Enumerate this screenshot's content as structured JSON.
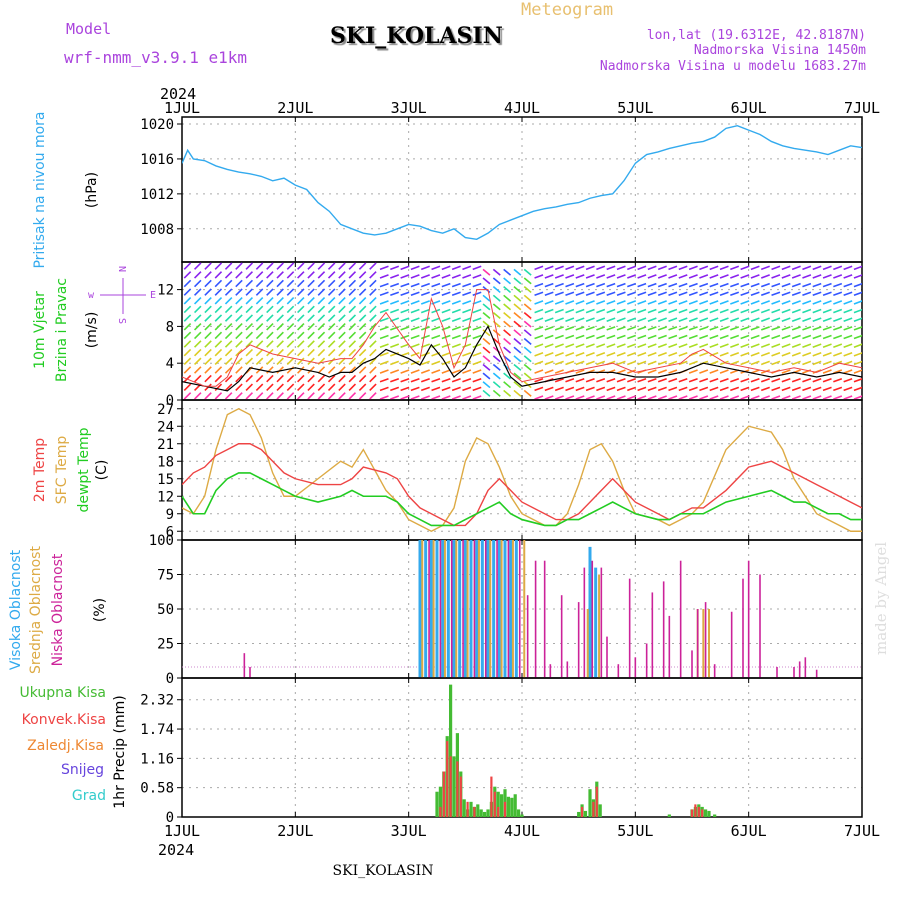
{
  "header": {
    "model_label": "Model",
    "model_name": "wrf-nmm_v3.9.1 e1km",
    "title": "SKI_KOLASIN",
    "subtitle": "Meteogram",
    "location": "lon,lat (19.6312E, 42.8187N)",
    "elevation": "Nadmorska Visina 1450m",
    "model_elevation": "Nadmorska Visina u modelu 1683.27m",
    "year_top": "2024",
    "year_bottom": "2024",
    "footer": "SKI_KOLASIN",
    "watermark": "made by Angel"
  },
  "colors": {
    "pressure": "#33aaee",
    "temp2m": "#ee4444",
    "sfc": "#ddaa44",
    "dewpt": "#22cc22",
    "wind_speed": "#000000",
    "gust": "#ee4444",
    "cloud_high": "#33aaee",
    "cloud_mid": "#ddaa44",
    "cloud_low": "#cc2299",
    "total": "#44bb33",
    "convective": "#ee4444",
    "frozen": "#ee8833",
    "snow": "#6644dd",
    "hail": "#33cccc",
    "grid": "#aaaaaa"
  },
  "chart_data": [
    {
      "type": "line",
      "panel": "pressure",
      "labels": [
        "Pritisak na nivou mora",
        "(hPa)"
      ],
      "x_ticks": [
        "1JUL",
        "2JUL",
        "3JUL",
        "4JUL",
        "5JUL",
        "6JUL",
        "7JUL"
      ],
      "y_ticks": [
        1008,
        1012,
        1016,
        1020
      ],
      "ylim": [
        1004.2,
        1020.8
      ],
      "xlim": [
        0,
        6
      ],
      "series": [
        {
          "x": [
            0,
            0.05,
            0.1,
            0.2,
            0.3,
            0.4,
            0.5,
            0.6,
            0.7,
            0.8,
            0.9,
            1.0,
            1.1,
            1.2,
            1.3,
            1.4,
            1.5,
            1.6,
            1.7,
            1.8,
            1.9,
            2.0,
            2.1,
            2.2,
            2.3,
            2.4,
            2.5,
            2.6,
            2.7,
            2.8,
            2.9,
            3.0,
            3.1,
            3.2,
            3.3,
            3.4,
            3.5,
            3.6,
            3.7,
            3.8,
            3.9,
            4.0,
            4.1,
            4.2,
            4.3,
            4.4,
            4.5,
            4.6,
            4.7,
            4.8,
            4.9,
            5.0,
            5.1,
            5.2,
            5.3,
            5.4,
            5.5,
            5.6,
            5.7,
            5.8,
            5.9,
            6.0
          ],
          "values": [
            1015.5,
            1017.0,
            1016.0,
            1015.8,
            1015.2,
            1014.8,
            1014.5,
            1014.3,
            1014.0,
            1013.5,
            1013.8,
            1013.0,
            1012.5,
            1011.0,
            1010.0,
            1008.5,
            1008.0,
            1007.5,
            1007.3,
            1007.5,
            1008.0,
            1008.5,
            1008.3,
            1007.8,
            1007.5,
            1008.0,
            1007.0,
            1006.8,
            1007.5,
            1008.5,
            1009.0,
            1009.5,
            1010.0,
            1010.3,
            1010.5,
            1010.8,
            1011.0,
            1011.5,
            1011.8,
            1012.0,
            1013.5,
            1015.5,
            1016.5,
            1016.8,
            1017.2,
            1017.5,
            1017.8,
            1018.0,
            1018.5,
            1019.5,
            1019.8,
            1019.3,
            1018.8,
            1018.0,
            1017.5,
            1017.2,
            1017.0,
            1016.8,
            1016.5,
            1017.0,
            1017.5,
            1017.3
          ]
        }
      ]
    },
    {
      "type": "line",
      "panel": "wind",
      "labels": [
        "10m Vjetar",
        "Brzina i Pravac",
        "(m/s)"
      ],
      "legend_glyph": [
        "N",
        "w",
        "E",
        "S"
      ],
      "y_ticks": [
        0,
        4,
        8,
        12
      ],
      "ylim": [
        0,
        15
      ],
      "series": [
        {
          "name": "speed",
          "x": [
            0,
            0.2,
            0.4,
            0.5,
            0.6,
            0.8,
            1.0,
            1.2,
            1.3,
            1.4,
            1.5,
            1.6,
            1.7,
            1.8,
            2.0,
            2.1,
            2.2,
            2.3,
            2.4,
            2.5,
            2.6,
            2.7,
            2.8,
            2.9,
            3.0,
            3.2,
            3.4,
            3.6,
            3.8,
            4.0,
            4.2,
            4.4,
            4.5,
            4.6,
            4.8,
            5.0,
            5.2,
            5.4,
            5.6,
            5.8,
            6.0
          ],
          "values": [
            2.0,
            1.5,
            1.0,
            2.0,
            3.5,
            3.0,
            3.5,
            3.0,
            2.5,
            3.0,
            3.0,
            4.0,
            4.5,
            5.5,
            4.5,
            3.8,
            6.0,
            4.5,
            2.5,
            3.5,
            6.0,
            8.0,
            5.0,
            2.5,
            1.5,
            2.0,
            2.5,
            3.0,
            3.0,
            2.5,
            2.5,
            3.0,
            3.5,
            4.0,
            3.5,
            3.0,
            2.5,
            3.0,
            2.5,
            3.0,
            2.5
          ]
        },
        {
          "name": "gust",
          "x": [
            0,
            0.2,
            0.3,
            0.4,
            0.5,
            0.6,
            0.8,
            1.0,
            1.2,
            1.4,
            1.5,
            1.6,
            1.7,
            1.8,
            2.0,
            2.1,
            2.2,
            2.3,
            2.4,
            2.5,
            2.6,
            2.7,
            2.8,
            2.9,
            3.0,
            3.2,
            3.4,
            3.6,
            3.8,
            4.0,
            4.2,
            4.4,
            4.5,
            4.6,
            4.8,
            5.0,
            5.2,
            5.4,
            5.6,
            5.8,
            6.0
          ],
          "values": [
            2.5,
            1.5,
            1.5,
            2.5,
            5.0,
            6.0,
            5.0,
            4.5,
            4.0,
            4.5,
            4.5,
            6.0,
            8.0,
            9.5,
            6.0,
            4.5,
            11.0,
            8.0,
            3.5,
            6.0,
            12.0,
            12.0,
            6.0,
            3.0,
            2.0,
            2.5,
            3.0,
            3.5,
            4.0,
            3.0,
            3.5,
            4.0,
            5.0,
            5.5,
            4.0,
            3.5,
            3.0,
            3.5,
            3.0,
            4.0,
            3.5
          ]
        }
      ]
    },
    {
      "type": "line",
      "panel": "temperature",
      "labels": [
        "2m Temp",
        "SFC Temp",
        "dewpt Temp",
        "(C)"
      ],
      "y_ticks": [
        6,
        9,
        12,
        15,
        18,
        21,
        24,
        27
      ],
      "ylim": [
        4.5,
        28.5
      ],
      "series": [
        {
          "name": "2m",
          "x": [
            0,
            0.1,
            0.2,
            0.3,
            0.4,
            0.5,
            0.6,
            0.7,
            0.8,
            0.9,
            1.0,
            1.2,
            1.4,
            1.5,
            1.6,
            1.8,
            1.9,
            2.0,
            2.1,
            2.2,
            2.3,
            2.4,
            2.5,
            2.6,
            2.7,
            2.8,
            2.9,
            3.0,
            3.2,
            3.3,
            3.4,
            3.5,
            3.6,
            3.7,
            3.8,
            3.9,
            4.0,
            4.2,
            4.3,
            4.4,
            4.5,
            4.6,
            4.8,
            5.0,
            5.2,
            5.3,
            5.4,
            5.5,
            5.6,
            5.7,
            5.8,
            5.9,
            6.0
          ],
          "values": [
            14,
            16,
            17,
            19,
            20,
            21,
            21,
            20,
            18,
            16,
            15,
            14,
            14,
            15,
            17,
            16,
            15,
            12,
            10,
            9,
            8,
            7,
            7,
            9,
            13,
            15,
            13,
            11,
            9,
            8,
            8,
            9,
            11,
            13,
            15,
            13,
            11,
            9,
            8,
            9,
            10,
            10,
            13,
            17,
            18,
            17,
            16,
            15,
            14,
            13,
            12,
            11,
            10
          ]
        },
        {
          "name": "SFC",
          "x": [
            0,
            0.1,
            0.2,
            0.3,
            0.4,
            0.5,
            0.6,
            0.7,
            0.8,
            0.9,
            1.0,
            1.2,
            1.4,
            1.5,
            1.6,
            1.8,
            1.9,
            2.0,
            2.1,
            2.2,
            2.3,
            2.4,
            2.5,
            2.6,
            2.7,
            2.8,
            2.9,
            3.0,
            3.2,
            3.3,
            3.4,
            3.5,
            3.6,
            3.7,
            3.8,
            3.9,
            4.0,
            4.2,
            4.3,
            4.4,
            4.5,
            4.6,
            4.8,
            5.0,
            5.2,
            5.3,
            5.4,
            5.5,
            5.6,
            5.7,
            5.8,
            5.9,
            6.0
          ],
          "values": [
            10,
            9,
            12,
            20,
            26,
            27,
            26,
            22,
            16,
            12,
            12,
            15,
            18,
            17,
            20,
            13,
            11,
            8,
            7,
            6,
            7,
            10,
            18,
            22,
            21,
            17,
            12,
            9,
            7,
            7,
            9,
            14,
            20,
            21,
            18,
            13,
            9,
            8,
            7,
            8,
            9,
            11,
            20,
            24,
            23,
            20,
            15,
            12,
            9,
            8,
            7,
            6,
            6
          ]
        },
        {
          "name": "dewpt",
          "x": [
            0,
            0.1,
            0.2,
            0.3,
            0.4,
            0.5,
            0.6,
            0.7,
            0.8,
            0.9,
            1.0,
            1.2,
            1.4,
            1.5,
            1.6,
            1.8,
            1.9,
            2.0,
            2.1,
            2.2,
            2.3,
            2.4,
            2.5,
            2.6,
            2.7,
            2.8,
            2.9,
            3.0,
            3.2,
            3.3,
            3.4,
            3.5,
            3.6,
            3.7,
            3.8,
            3.9,
            4.0,
            4.2,
            4.3,
            4.4,
            4.5,
            4.6,
            4.8,
            5.0,
            5.2,
            5.3,
            5.4,
            5.5,
            5.6,
            5.7,
            5.8,
            5.9,
            6.0
          ],
          "values": [
            12,
            9,
            9,
            13,
            15,
            16,
            16,
            15,
            14,
            13,
            12,
            11,
            12,
            13,
            12,
            12,
            11,
            9,
            8,
            7,
            7,
            7,
            8,
            9,
            10,
            11,
            9,
            8,
            7,
            7,
            8,
            8,
            9,
            10,
            11,
            10,
            9,
            8,
            8,
            9,
            9,
            9,
            11,
            12,
            13,
            12,
            11,
            11,
            10,
            9,
            9,
            8,
            8
          ]
        }
      ]
    },
    {
      "type": "bar",
      "panel": "clouds",
      "labels": [
        "Visoka Oblacnost",
        "Srednja Oblacnost",
        "Niska Oblacnost",
        "(%)"
      ],
      "y_ticks": [
        0,
        25,
        50,
        75,
        100
      ],
      "ylim": [
        0,
        100
      ],
      "series": [
        {
          "name": "Visoka",
          "x": [
            2.1,
            2.15,
            2.2,
            2.25,
            2.3,
            2.35,
            2.4,
            2.45,
            2.5,
            2.55,
            2.6,
            2.65,
            2.7,
            2.75,
            2.8,
            2.85,
            2.9,
            2.95,
            3.6,
            3.65
          ],
          "values": [
            100,
            100,
            100,
            100,
            100,
            100,
            100,
            100,
            100,
            100,
            100,
            100,
            100,
            100,
            100,
            100,
            100,
            100,
            95,
            80
          ]
        },
        {
          "name": "Srednja",
          "x": [
            2.12,
            2.22,
            2.32,
            2.42,
            2.52,
            2.62,
            2.72,
            2.82,
            2.92,
            3.02,
            3.58,
            3.68,
            4.55,
            4.6,
            4.65
          ],
          "values": [
            100,
            100,
            100,
            100,
            100,
            100,
            100,
            100,
            100,
            100,
            50,
            75,
            50,
            50,
            50
          ]
        },
        {
          "name": "Niska",
          "x": [
            0.55,
            0.6,
            2.18,
            2.28,
            2.38,
            2.48,
            2.58,
            2.68,
            2.78,
            2.88,
            2.98,
            3.05,
            3.12,
            3.2,
            3.25,
            3.35,
            3.4,
            3.5,
            3.55,
            3.62,
            3.7,
            3.75,
            3.85,
            3.95,
            4.0,
            4.1,
            4.15,
            4.25,
            4.3,
            4.4,
            4.5,
            4.55,
            4.62,
            4.7,
            4.85,
            4.95,
            5.0,
            5.1,
            5.25,
            5.4,
            5.45,
            5.5,
            5.6
          ],
          "values": [
            18,
            8,
            100,
            100,
            100,
            100,
            100,
            100,
            100,
            100,
            100,
            60,
            85,
            85,
            10,
            60,
            12,
            55,
            80,
            85,
            80,
            30,
            10,
            72,
            15,
            25,
            62,
            70,
            45,
            85,
            20,
            50,
            55,
            10,
            48,
            72,
            85,
            75,
            8,
            8,
            12,
            15,
            6
          ]
        }
      ]
    },
    {
      "type": "bar",
      "panel": "precip",
      "labels": [
        "Ukupna Kisa",
        "Konvek.Kisa",
        "Zaledj.Kisa",
        "Snijeg",
        "Grad",
        "1hr Precip (mm)"
      ],
      "y_ticks": [
        0,
        0.58,
        1.16,
        1.74,
        2.32
      ],
      "ylim": [
        0,
        2.75
      ],
      "series": [
        {
          "name": "Ukupna",
          "x": [
            2.25,
            2.28,
            2.31,
            2.34,
            2.37,
            2.4,
            2.43,
            2.46,
            2.49,
            2.52,
            2.55,
            2.58,
            2.61,
            2.64,
            2.67,
            2.7,
            2.73,
            2.76,
            2.79,
            2.82,
            2.85,
            2.88,
            2.91,
            2.94,
            2.97,
            3.0,
            3.5,
            3.53,
            3.56,
            3.6,
            3.63,
            3.66,
            3.69,
            4.3,
            4.5,
            4.53,
            4.56,
            4.59,
            4.62,
            4.65,
            4.7
          ],
          "values": [
            0.5,
            0.6,
            0.9,
            1.6,
            2.62,
            1.2,
            1.66,
            0.9,
            0.35,
            0.15,
            0.3,
            0.2,
            0.25,
            0.15,
            0.1,
            0.15,
            0.3,
            0.6,
            0.5,
            0.45,
            0.55,
            0.4,
            0.38,
            0.45,
            0.15,
            0.05,
            0.1,
            0.25,
            0.12,
            0.55,
            0.35,
            0.7,
            0.25,
            0.05,
            0.15,
            0.2,
            0.25,
            0.2,
            0.15,
            0.12,
            0.05
          ]
        },
        {
          "name": "Konvek",
          "x": [
            2.28,
            2.31,
            2.34,
            2.37,
            2.43,
            2.46,
            2.52,
            2.58,
            2.73,
            2.76,
            2.79,
            2.85,
            3.53,
            3.63,
            3.66,
            4.5,
            4.53,
            4.56,
            4.59
          ],
          "values": [
            0.2,
            0.9,
            1.5,
            1.2,
            1.1,
            0.8,
            0.3,
            0.2,
            0.8,
            0.5,
            0.2,
            0.3,
            0.2,
            0.3,
            0.6,
            0.15,
            0.25,
            0.2,
            0.15
          ]
        }
      ]
    }
  ]
}
